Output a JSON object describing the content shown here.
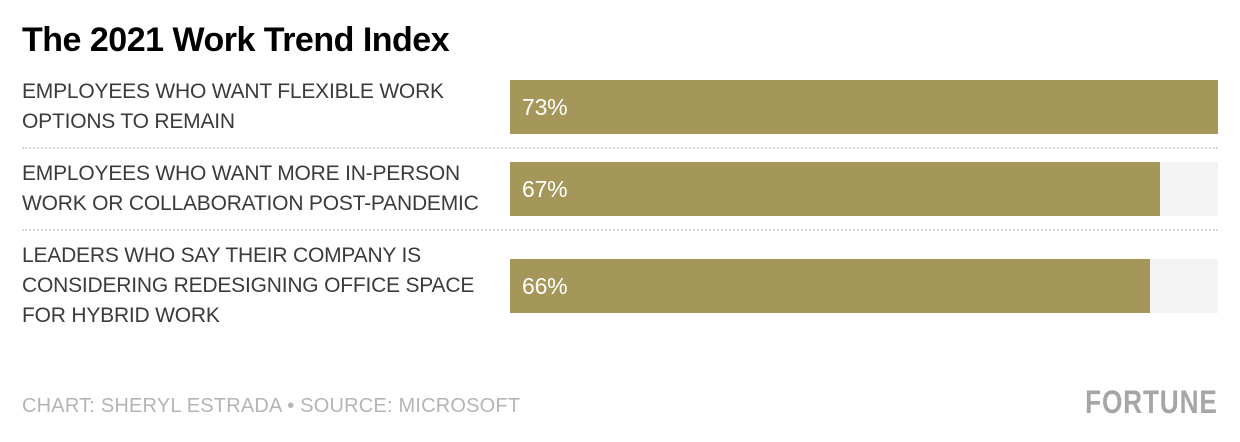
{
  "title": "The 2021 Work Trend Index",
  "rows": [
    {
      "label": "EMPLOYEES WHO WANT FLEXIBLE WORK OPTIONS TO REMAIN",
      "value": 73,
      "value_label": "73%"
    },
    {
      "label": "EMPLOYEES WHO WANT MORE IN-PERSON WORK OR COLLABORATION POST-PANDEMIC",
      "value": 67,
      "value_label": "67%"
    },
    {
      "label": "LEADERS WHO SAY THEIR COMPANY IS CONSIDERING REDESIGNING OFFICE SPACE FOR HYBRID WORK",
      "value": 66,
      "value_label": "66%"
    }
  ],
  "footer": {
    "credit": "CHART: SHERYL ESTRADA • SOURCE: MICROSOFT",
    "logo": "FORTUNE"
  },
  "colors": {
    "title": "#000000",
    "label": "#3b3b3b",
    "bar": "#a49759",
    "track": "#f3f3f3",
    "divider": "#d8d8d8",
    "muted": "#b5b5b5",
    "logo": "#a6a6a6"
  },
  "chart_data": {
    "type": "bar",
    "orientation": "horizontal",
    "title": "The 2021 Work Trend Index",
    "categories": [
      "EMPLOYEES WHO WANT FLEXIBLE WORK OPTIONS TO REMAIN",
      "EMPLOYEES WHO WANT MORE IN-PERSON WORK OR COLLABORATION POST-PANDEMIC",
      "LEADERS WHO SAY THEIR COMPANY IS CONSIDERING REDESIGNING OFFICE SPACE FOR HYBRID WORK"
    ],
    "values": [
      73,
      67,
      66
    ],
    "value_suffix": "%",
    "scale_max": 73,
    "xlabel": "",
    "ylabel": "",
    "grid": false,
    "legend": false,
    "data_labels": "inside-start",
    "annotations": [
      "CHART: SHERYL ESTRADA • SOURCE: MICROSOFT"
    ]
  }
}
